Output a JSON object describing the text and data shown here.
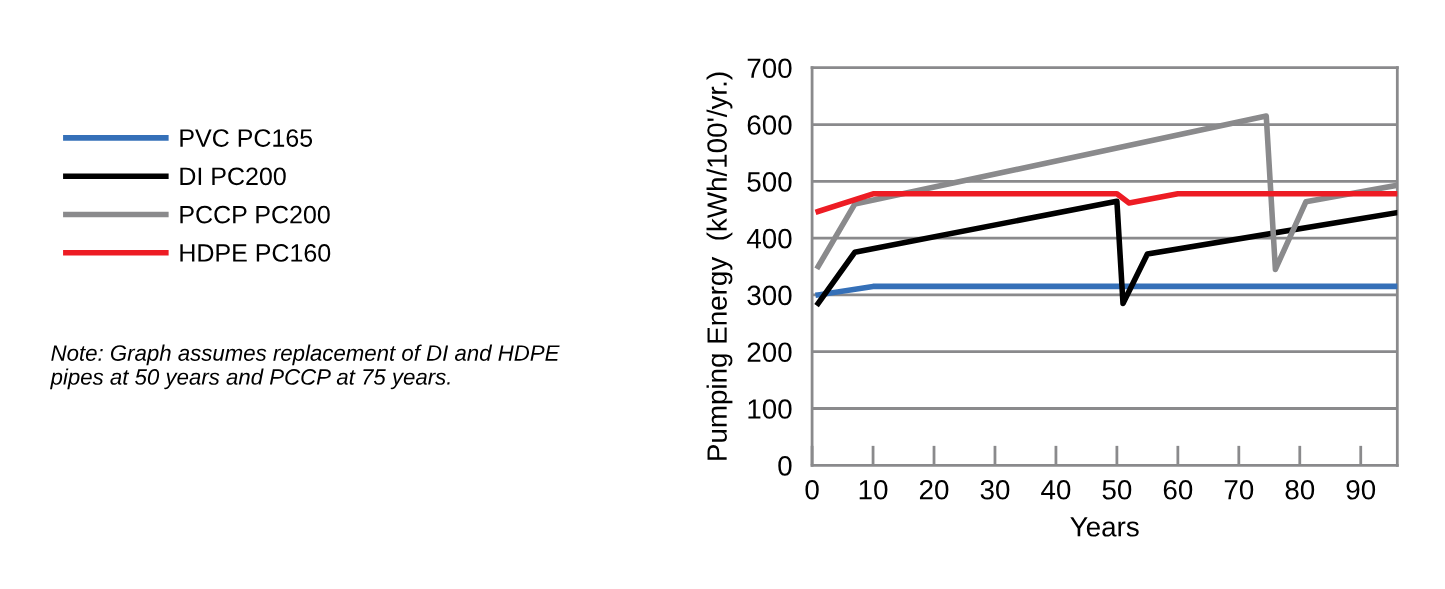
{
  "chart_data": {
    "type": "line",
    "xlabel": "Years",
    "ylabel": "Pumping Energy  (kWh/100'/yr.)",
    "xlim": [
      0,
      96
    ],
    "xticks": [
      0,
      10,
      20,
      30,
      40,
      50,
      60,
      70,
      80,
      90
    ],
    "ylim": [
      0,
      700
    ],
    "yticks": [
      0,
      100,
      200,
      300,
      400,
      500,
      600,
      700
    ],
    "grid": "y",
    "legend": "left",
    "marker": "none",
    "line_style": "solid",
    "series": [
      {
        "name": "PVC PC165",
        "color": "#3570b8",
        "x": [
          1,
          10,
          96
        ],
        "values": [
          300,
          315,
          315
        ]
      },
      {
        "name": "DI PC200",
        "color": "#000000",
        "x": [
          1,
          7,
          50,
          51,
          55,
          96
        ],
        "values": [
          285,
          375,
          465,
          285,
          372,
          445
        ]
      },
      {
        "name": "PCCP PC200",
        "color": "#8a8a8c",
        "x": [
          1,
          7,
          74.5,
          76,
          81,
          96
        ],
        "values": [
          350,
          460,
          615,
          345,
          464,
          493
        ]
      },
      {
        "name": "HDPE PC160",
        "color": "#ed1c24",
        "x": [
          1,
          10,
          50,
          52,
          60,
          96
        ],
        "values": [
          447,
          478,
          478,
          462,
          478,
          478
        ]
      }
    ],
    "annotations": [
      "Note: Graph assumes replacement of DI and HDPE\npipes at 50 years and PCCP at 75 years."
    ]
  }
}
